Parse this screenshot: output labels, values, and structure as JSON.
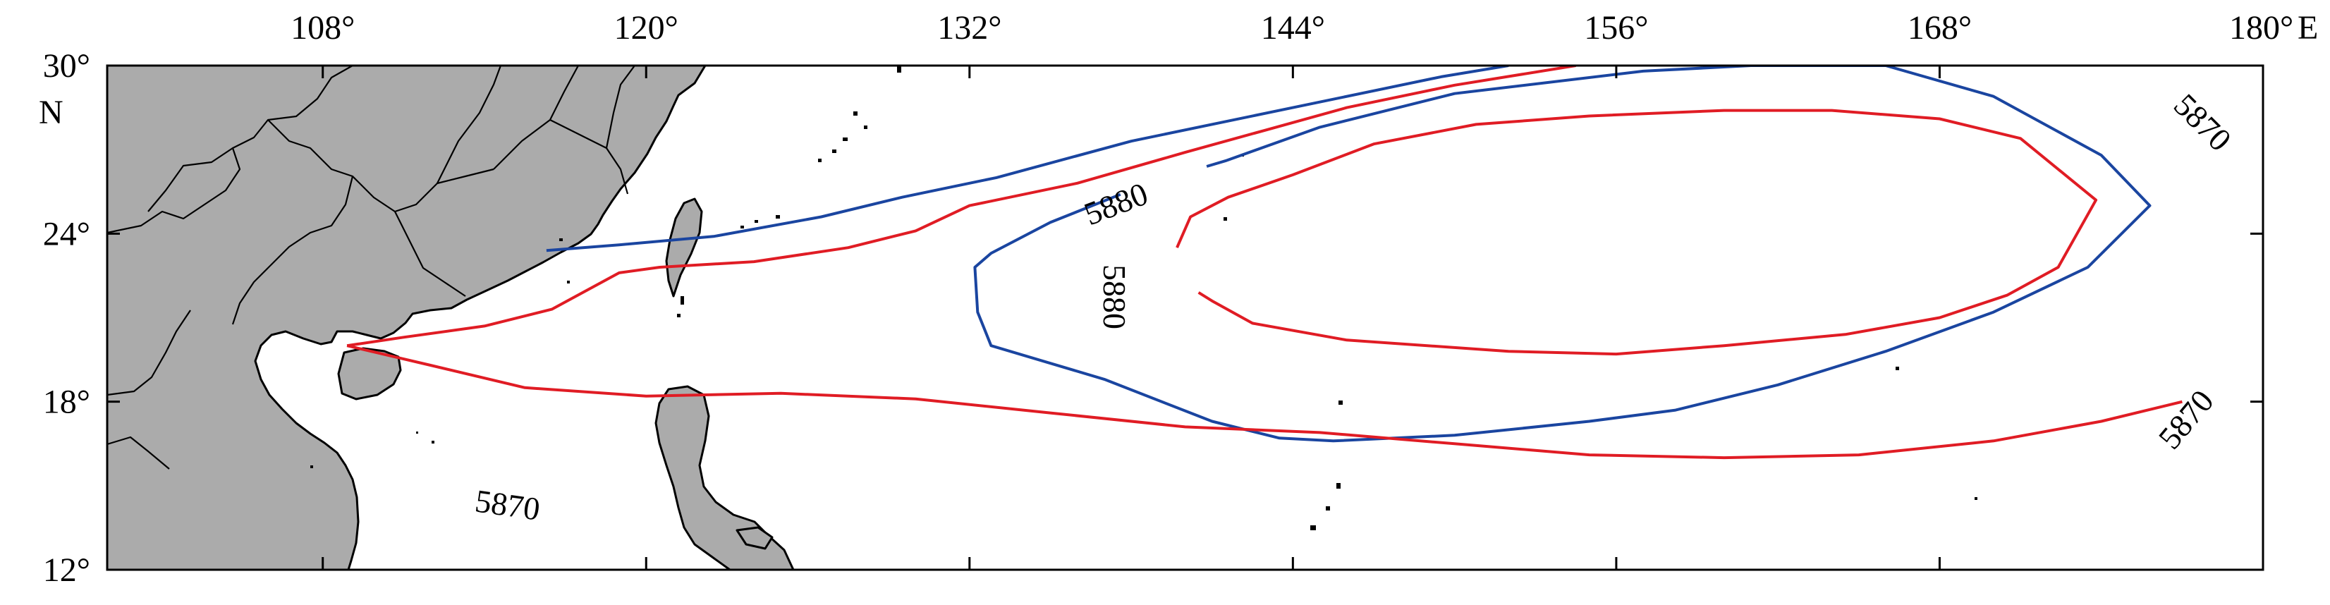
{
  "map": {
    "x_ticks": [
      {
        "lon": 108,
        "label": "108°"
      },
      {
        "lon": 120,
        "label": "120°"
      },
      {
        "lon": 132,
        "label": "132°"
      },
      {
        "lon": 144,
        "label": "144°"
      },
      {
        "lon": 156,
        "label": "156°"
      },
      {
        "lon": 168,
        "label": "168°"
      },
      {
        "lon": 180,
        "label": "180°"
      }
    ],
    "x_unit": "E",
    "y_ticks": [
      {
        "lat": 30,
        "label": "30°"
      },
      {
        "lat": 24,
        "label": "24°"
      },
      {
        "lat": 18,
        "label": "18°"
      },
      {
        "lat": 12,
        "label": "12°"
      }
    ],
    "y_unit": "N",
    "lon_range": [
      100,
      180
    ],
    "lat_range": [
      12,
      30
    ],
    "land_color": "#ababab",
    "contour_labels": [
      {
        "text": "5880",
        "color": "#1a45a0"
      },
      {
        "text": "5880",
        "color": "#e01c24"
      },
      {
        "text": "5870",
        "color": "#e01c24"
      },
      {
        "text": "5870",
        "color": "#1a45a0"
      },
      {
        "text": "5870",
        "color": "#1a45a0"
      }
    ]
  },
  "chart_data": {
    "type": "line",
    "series": [
      {
        "color": "#1a45a0",
        "level": "5870",
        "points": [
          [
            116.3,
            23.4
          ],
          [
            119,
            23.6
          ],
          [
            122.5,
            23.9
          ],
          [
            126.5,
            24.6
          ],
          [
            129.5,
            25.3
          ],
          [
            133,
            26.0
          ],
          [
            138,
            27.3
          ],
          [
            144,
            28.5
          ],
          [
            149.5,
            29.6
          ],
          [
            152,
            30.0
          ]
        ]
      },
      {
        "color": "#1a45a0",
        "level": "5880",
        "points": [
          [
            137.6,
            25.4
          ],
          [
            135,
            24.4
          ],
          [
            132.8,
            23.3
          ],
          [
            132.2,
            22.8
          ],
          [
            132.3,
            21.2
          ],
          [
            132.8,
            20.0
          ],
          [
            137,
            18.8
          ],
          [
            141,
            17.3
          ],
          [
            143.5,
            16.7
          ],
          [
            145.5,
            16.6
          ],
          [
            150,
            16.8
          ],
          [
            155,
            17.3
          ],
          [
            158.2,
            17.7
          ],
          [
            162,
            18.6
          ],
          [
            166,
            19.8
          ],
          [
            170,
            21.2
          ],
          [
            173.5,
            22.8
          ],
          [
            175.8,
            25.0
          ],
          [
            174,
            26.8
          ],
          [
            170,
            28.9
          ],
          [
            166,
            30.0
          ],
          [
            161,
            30.0
          ],
          [
            157,
            29.8
          ],
          [
            150,
            29.0
          ],
          [
            145,
            27.8
          ],
          [
            141.5,
            26.6
          ],
          [
            140.8,
            26.4
          ]
        ]
      },
      {
        "color": "#e01c24",
        "level": "5870",
        "points": [
          [
            108.9,
            20.0
          ],
          [
            111,
            20.3
          ],
          [
            114,
            20.7
          ],
          [
            116.5,
            21.3
          ],
          [
            119,
            22.6
          ],
          [
            120.5,
            22.8
          ],
          [
            124,
            23.0
          ],
          [
            127.5,
            23.5
          ],
          [
            130,
            24.1
          ],
          [
            132,
            25.0
          ],
          [
            136,
            25.8
          ],
          [
            140,
            26.9
          ],
          [
            143,
            27.7
          ],
          [
            146,
            28.5
          ],
          [
            150,
            29.3
          ],
          [
            154.5,
            30.0
          ]
        ]
      },
      {
        "color": "#e01c24",
        "level": "5870",
        "points": [
          [
            108.9,
            20.0
          ],
          [
            112,
            19.3
          ],
          [
            115.5,
            18.5
          ],
          [
            120,
            18.2
          ],
          [
            125,
            18.3
          ],
          [
            130,
            18.1
          ],
          [
            135,
            17.6
          ],
          [
            140,
            17.1
          ],
          [
            145,
            16.9
          ],
          [
            150,
            16.5
          ],
          [
            155,
            16.1
          ],
          [
            160,
            16.0
          ],
          [
            165,
            16.1
          ],
          [
            170,
            16.6
          ],
          [
            174,
            17.3
          ],
          [
            177,
            18.0
          ]
        ]
      },
      {
        "color": "#e01c24",
        "level": "5880",
        "points": [
          [
            139.7,
            23.5
          ],
          [
            140.2,
            24.6
          ],
          [
            141.6,
            25.3
          ],
          [
            144,
            26.1
          ],
          [
            147,
            27.2
          ],
          [
            150.8,
            27.9
          ],
          [
            155,
            28.2
          ],
          [
            160,
            28.4
          ],
          [
            164,
            28.4
          ],
          [
            168,
            28.1
          ],
          [
            171,
            27.4
          ],
          [
            173.8,
            25.2
          ],
          [
            172.4,
            22.8
          ],
          [
            170.5,
            21.8
          ],
          [
            168,
            21.0
          ],
          [
            164.5,
            20.4
          ],
          [
            160,
            20.0
          ],
          [
            156,
            19.7
          ],
          [
            152,
            19.8
          ],
          [
            146,
            20.2
          ],
          [
            142.5,
            20.8
          ],
          [
            141,
            21.6
          ],
          [
            140.5,
            21.9
          ]
        ]
      }
    ]
  }
}
